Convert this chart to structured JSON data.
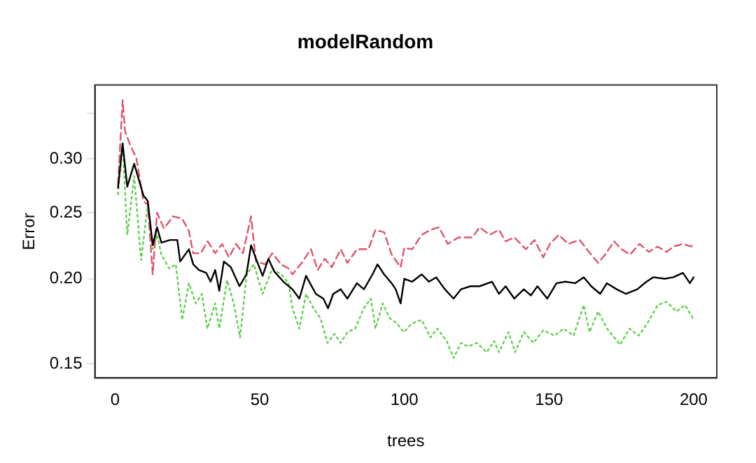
{
  "chart_data": {
    "type": "line",
    "title": "modelRandom",
    "xlabel": "trees",
    "ylabel": "Error",
    "log": "y",
    "grid": false,
    "legend": false,
    "marker": "none",
    "xlim": [
      -7,
      208
    ],
    "xticks": [
      0,
      50,
      100,
      150,
      200
    ],
    "ylim": [
      0.143,
      0.385
    ],
    "yticks": [
      0.15,
      {
        "value": 0.2,
        "label": "0.20"
      },
      0.25,
      {
        "value": 0.3,
        "label": "0.30"
      },
      {
        "value": 0.35,
        "label": null
      }
    ],
    "series": [
      {
        "color": "#000000",
        "line_style": "solid",
        "x": [
          1,
          2.6,
          4.2,
          6.6,
          9.8,
          11.3,
          13,
          14.5,
          16,
          19,
          21.5,
          22.5,
          25.5,
          27,
          29,
          31.5,
          33,
          34.6,
          36,
          37.6,
          40,
          43,
          45.4,
          47,
          48.7,
          51,
          53,
          55,
          58.2,
          61.3,
          63.7,
          66,
          69.4,
          72,
          73.6,
          75.4,
          78,
          80.3,
          83.6,
          86,
          89,
          90.7,
          93,
          95.6,
          97,
          98.7,
          100,
          102.7,
          106,
          108.5,
          111,
          114,
          117,
          119.6,
          122.8,
          126,
          130.3,
          132.7,
          135,
          138,
          141.3,
          143.7,
          146,
          149.4,
          152.6,
          155.7,
          159,
          162,
          164.6,
          167.7,
          170,
          173.4,
          176.6,
          180.5,
          183.7,
          186,
          190,
          193,
          196.3,
          198.7,
          200
        ],
        "values": [
          0.272,
          0.316,
          0.273,
          0.295,
          0.265,
          0.26,
          0.224,
          0.238,
          0.226,
          0.228,
          0.228,
          0.212,
          0.221,
          0.21,
          0.206,
          0.204,
          0.198,
          0.206,
          0.192,
          0.212,
          0.208,
          0.195,
          0.203,
          0.224,
          0.214,
          0.202,
          0.214,
          0.205,
          0.198,
          0.193,
          0.187,
          0.202,
          0.19,
          0.187,
          0.181,
          0.19,
          0.193,
          0.187,
          0.197,
          0.193,
          0.203,
          0.21,
          0.203,
          0.197,
          0.193,
          0.184,
          0.2,
          0.198,
          0.203,
          0.198,
          0.201,
          0.193,
          0.187,
          0.193,
          0.195,
          0.195,
          0.198,
          0.19,
          0.195,
          0.187,
          0.193,
          0.189,
          0.195,
          0.187,
          0.197,
          0.198,
          0.197,
          0.201,
          0.195,
          0.19,
          0.197,
          0.193,
          0.19,
          0.193,
          0.198,
          0.201,
          0.2,
          0.201,
          0.204,
          0.197,
          0.201
        ]
      },
      {
        "color": "#df536b",
        "line_style": "dashed",
        "x": [
          1,
          2.6,
          3.4,
          5,
          7.4,
          9.8,
          11.3,
          13,
          14.5,
          16.9,
          20,
          23.2,
          25.5,
          27,
          29.6,
          32,
          34.6,
          37,
          39.4,
          41.8,
          44.2,
          47,
          48.7,
          51.9,
          54.3,
          57.4,
          60,
          61.3,
          64.5,
          67.7,
          70,
          72.5,
          74.9,
          78,
          80.3,
          83.6,
          87.6,
          90,
          93,
          95.6,
          98.7,
          100,
          102.7,
          106,
          109,
          112,
          115,
          118.7,
          123.5,
          126,
          129.5,
          132.7,
          135,
          138,
          142,
          145,
          148,
          150.3,
          153.4,
          156.6,
          160.6,
          163.8,
          167,
          169.4,
          172.5,
          175,
          178,
          181.3,
          184.5,
          187.5,
          190.7,
          193,
          196.3,
          199.2,
          200
        ],
        "values": [
          0.275,
          0.366,
          0.33,
          0.316,
          0.3,
          0.26,
          0.257,
          0.203,
          0.25,
          0.237,
          0.247,
          0.245,
          0.235,
          0.218,
          0.218,
          0.227,
          0.218,
          0.225,
          0.215,
          0.225,
          0.218,
          0.247,
          0.212,
          0.21,
          0.218,
          0.21,
          0.207,
          0.203,
          0.211,
          0.221,
          0.206,
          0.214,
          0.208,
          0.221,
          0.211,
          0.221,
          0.221,
          0.236,
          0.234,
          0.217,
          0.208,
          0.222,
          0.221,
          0.232,
          0.236,
          0.238,
          0.225,
          0.23,
          0.23,
          0.238,
          0.232,
          0.236,
          0.227,
          0.23,
          0.221,
          0.228,
          0.215,
          0.225,
          0.232,
          0.225,
          0.228,
          0.219,
          0.211,
          0.217,
          0.227,
          0.221,
          0.217,
          0.225,
          0.219,
          0.223,
          0.219,
          0.223,
          0.225,
          0.223,
          0.225
        ]
      },
      {
        "color": "#61d04f",
        "line_style": "dotted",
        "x": [
          1,
          2.6,
          4.2,
          6.6,
          9,
          11.3,
          13,
          14.5,
          16,
          18.7,
          21,
          23.2,
          25.5,
          27.9,
          30,
          31.9,
          34.6,
          36,
          38.7,
          41,
          43.2,
          45.5,
          48,
          51,
          54.3,
          57.4,
          60,
          61.3,
          63.7,
          66,
          68.6,
          71,
          73.4,
          75.8,
          78,
          80.3,
          83,
          86,
          88.4,
          90,
          92.5,
          95,
          97.4,
          99.8,
          102.7,
          106,
          109,
          111.4,
          114.6,
          117,
          119.6,
          122,
          125,
          128.5,
          131,
          132.7,
          136,
          138.3,
          141.3,
          144.6,
          148,
          152,
          155,
          158.5,
          162,
          164,
          167,
          170,
          174.6,
          177.8,
          181,
          184,
          187.6,
          190.7,
          194,
          197,
          199.7
        ],
        "values": [
          0.266,
          0.316,
          0.232,
          0.283,
          0.213,
          0.257,
          0.221,
          0.232,
          0.217,
          0.207,
          0.21,
          0.174,
          0.197,
          0.184,
          0.19,
          0.169,
          0.184,
          0.169,
          0.199,
          0.184,
          0.164,
          0.203,
          0.21,
          0.19,
          0.207,
          0.203,
          0.197,
          0.181,
          0.169,
          0.19,
          0.181,
          0.175,
          0.161,
          0.166,
          0.161,
          0.167,
          0.169,
          0.181,
          0.187,
          0.169,
          0.184,
          0.175,
          0.172,
          0.167,
          0.172,
          0.174,
          0.164,
          0.169,
          0.162,
          0.153,
          0.161,
          0.159,
          0.161,
          0.156,
          0.162,
          0.156,
          0.167,
          0.156,
          0.167,
          0.161,
          0.168,
          0.165,
          0.169,
          0.165,
          0.183,
          0.167,
          0.179,
          0.169,
          0.16,
          0.169,
          0.165,
          0.172,
          0.183,
          0.185,
          0.179,
          0.183,
          0.175
        ]
      }
    ]
  }
}
